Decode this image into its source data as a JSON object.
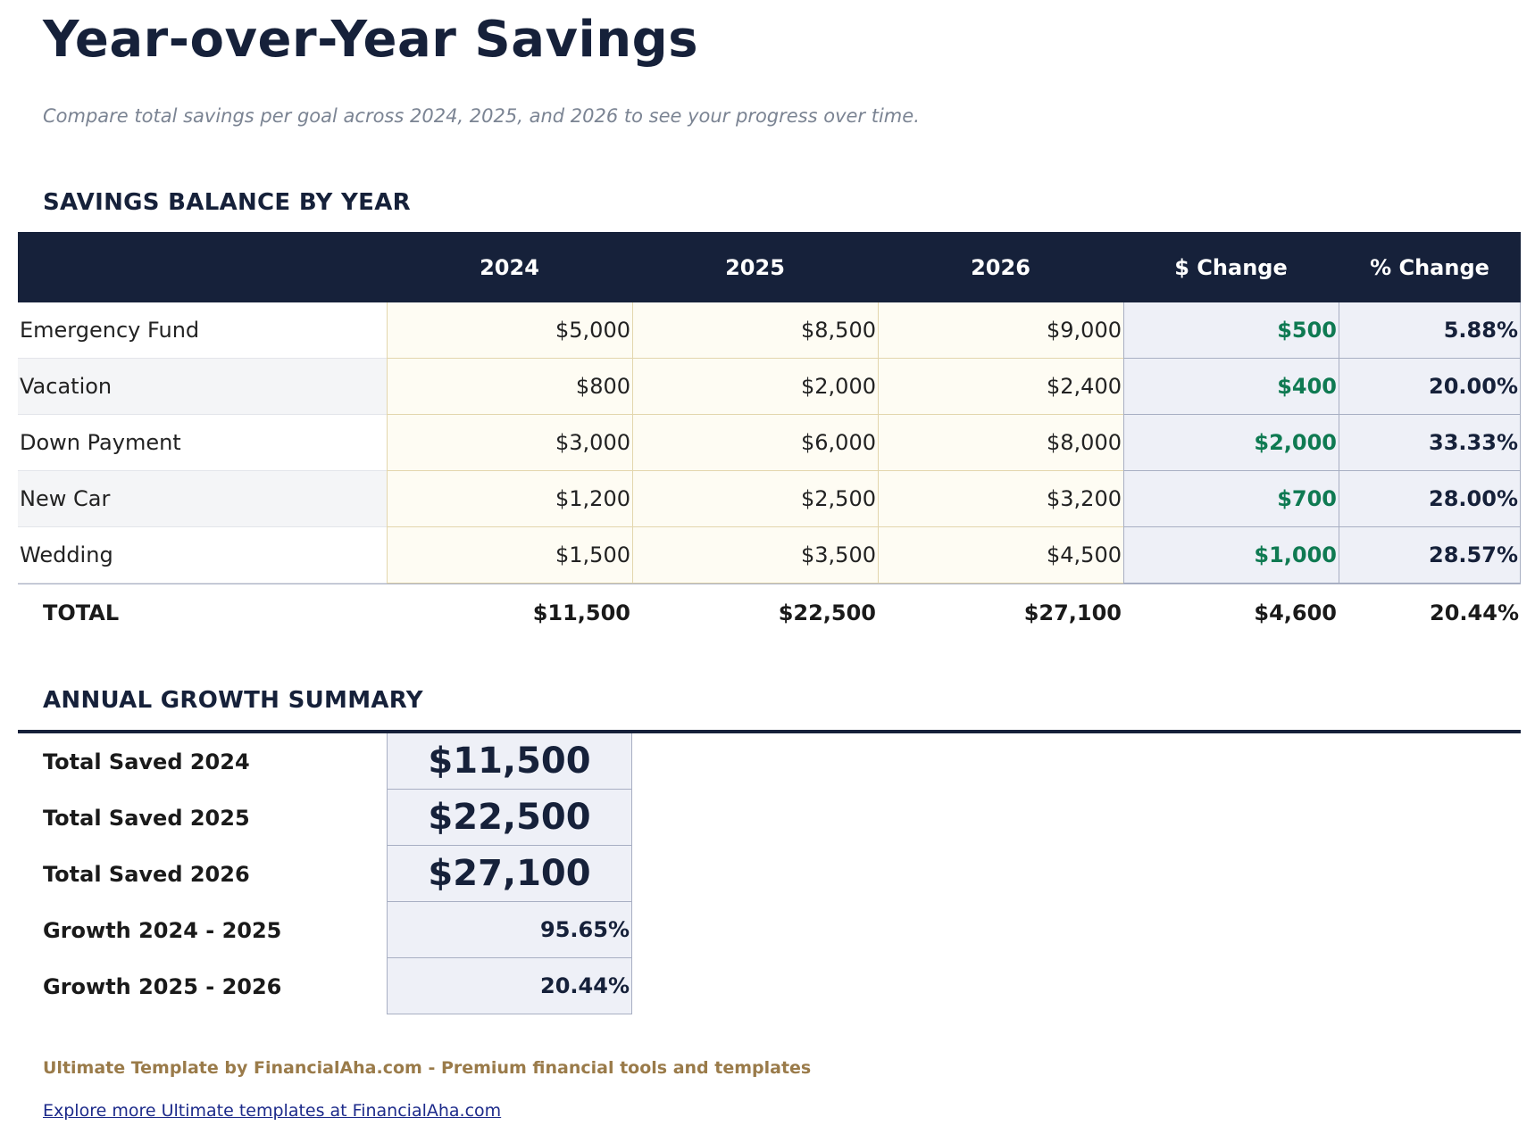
{
  "title": "Year-over-Year Savings",
  "subtitle": "Compare total savings per goal across 2024, 2025, and 2026 to see your progress over time.",
  "section1": "SAVINGS BALANCE BY YEAR",
  "headers": [
    "",
    "2024",
    "2025",
    "2026",
    "$ Change",
    "% Change"
  ],
  "rows": [
    {
      "goal": "Emergency Fund",
      "y2024": "$5,000",
      "y2025": "$8,500",
      "y2026": "$9,000",
      "change": "$500",
      "pct": "5.88%"
    },
    {
      "goal": "Vacation",
      "y2024": "$800",
      "y2025": "$2,000",
      "y2026": "$2,400",
      "change": "$400",
      "pct": "20.00%"
    },
    {
      "goal": "Down Payment",
      "y2024": "$3,000",
      "y2025": "$6,000",
      "y2026": "$8,000",
      "change": "$2,000",
      "pct": "33.33%"
    },
    {
      "goal": "New Car",
      "y2024": "$1,200",
      "y2025": "$2,500",
      "y2026": "$3,200",
      "change": "$700",
      "pct": "28.00%"
    },
    {
      "goal": "Wedding",
      "y2024": "$1,500",
      "y2025": "$3,500",
      "y2026": "$4,500",
      "change": "$1,000",
      "pct": "28.57%"
    }
  ],
  "total": {
    "label": "TOTAL",
    "y2024": "$11,500",
    "y2025": "$22,500",
    "y2026": "$27,100",
    "change": "$4,600",
    "pct": "20.44%"
  },
  "section2": "ANNUAL GROWTH SUMMARY",
  "summary": [
    {
      "label": "Total Saved 2024",
      "value": "$11,500"
    },
    {
      "label": "Total Saved 2025",
      "value": "$22,500"
    },
    {
      "label": "Total Saved 2026",
      "value": "$27,100"
    },
    {
      "label": "Growth 2024 - 2025",
      "value": "95.65%"
    },
    {
      "label": "Growth 2025 - 2026",
      "value": "20.44%"
    }
  ],
  "footer": "Ultimate Template by FinancialAha.com - Premium financial tools and templates",
  "link": "Explore more Ultimate templates at FinancialAha.com",
  "colors": {
    "navy": "#16213a",
    "green": "#0f7a52",
    "gold": "#9a7b4a"
  }
}
